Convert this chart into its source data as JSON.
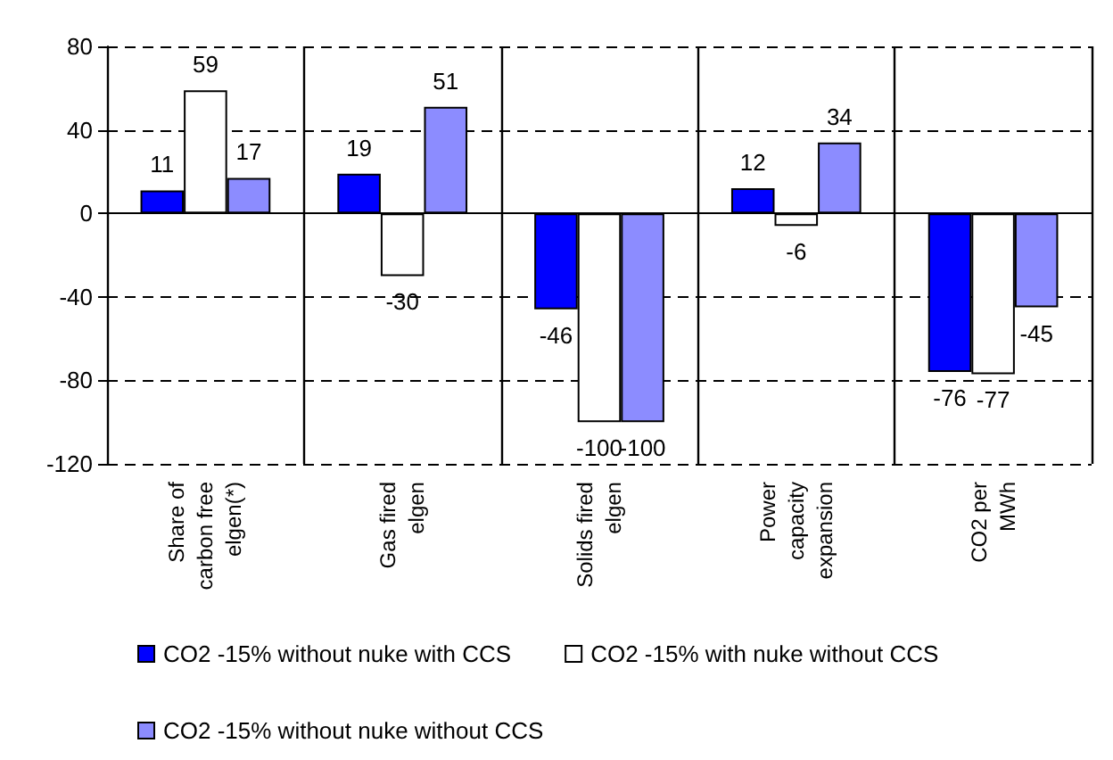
{
  "chart_data": {
    "type": "bar",
    "categories": [
      "Share of\ncarbon free\nelgen(*)",
      "Gas fired\nelgen",
      "Solids fired\nelgen",
      "Power\ncapacity\nexpansion",
      "CO2 per\nMWh"
    ],
    "series": [
      {
        "name": "CO2 -15% without nuke with CCS",
        "color": "#0000ff",
        "values": [
          11,
          19,
          -46,
          12,
          -76
        ]
      },
      {
        "name": "CO2 -15% with nuke without CCS",
        "color": "#ffffff",
        "values": [
          59,
          -30,
          -100,
          -6,
          -77
        ]
      },
      {
        "name": "CO2 -15% without nuke without CCS",
        "color": "#8c8cff",
        "values": [
          17,
          51,
          -100,
          34,
          -45
        ]
      }
    ],
    "ylim": [
      -120,
      80
    ],
    "yticks": [
      -120,
      -80,
      -40,
      0,
      40,
      80
    ],
    "grid": true,
    "legend": "bottom",
    "data_labels": true
  }
}
